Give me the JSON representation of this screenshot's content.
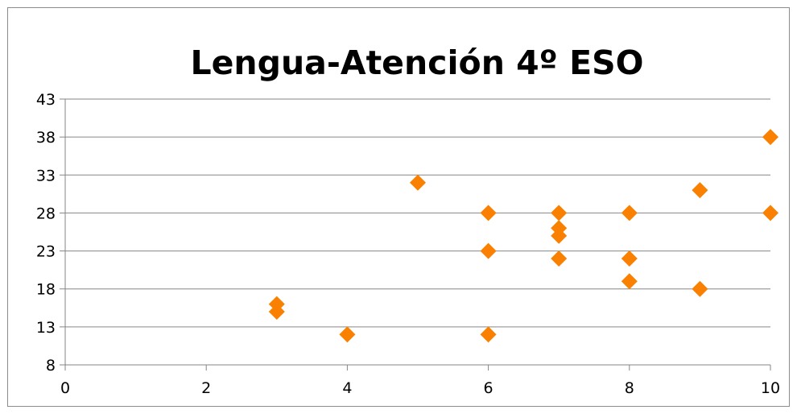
{
  "chart_data": {
    "type": "scatter",
    "title": "Lengua-Atención 4º ESO",
    "xlabel": "",
    "ylabel": "",
    "xlim": [
      0,
      10
    ],
    "ylim": [
      8,
      43
    ],
    "x_ticks": [
      0,
      2,
      4,
      6,
      8,
      10
    ],
    "y_ticks": [
      8,
      13,
      18,
      23,
      28,
      33,
      38,
      43
    ],
    "grid": "horizontal",
    "legend": "none",
    "marker": "diamond",
    "colors": {
      "marker": "#f98000",
      "grid": "#868686",
      "axis": "#868686",
      "frame": "#8c8c8c"
    },
    "series": [
      {
        "points": [
          {
            "x": 3,
            "y": 16
          },
          {
            "x": 3,
            "y": 15
          },
          {
            "x": 4,
            "y": 12
          },
          {
            "x": 5,
            "y": 32
          },
          {
            "x": 6,
            "y": 28
          },
          {
            "x": 6,
            "y": 23
          },
          {
            "x": 6,
            "y": 12
          },
          {
            "x": 7,
            "y": 28
          },
          {
            "x": 7,
            "y": 26
          },
          {
            "x": 7,
            "y": 25
          },
          {
            "x": 7,
            "y": 22
          },
          {
            "x": 8,
            "y": 28
          },
          {
            "x": 8,
            "y": 22
          },
          {
            "x": 8,
            "y": 19
          },
          {
            "x": 9,
            "y": 31
          },
          {
            "x": 9,
            "y": 18
          },
          {
            "x": 10,
            "y": 38
          },
          {
            "x": 10,
            "y": 28
          }
        ]
      }
    ]
  }
}
